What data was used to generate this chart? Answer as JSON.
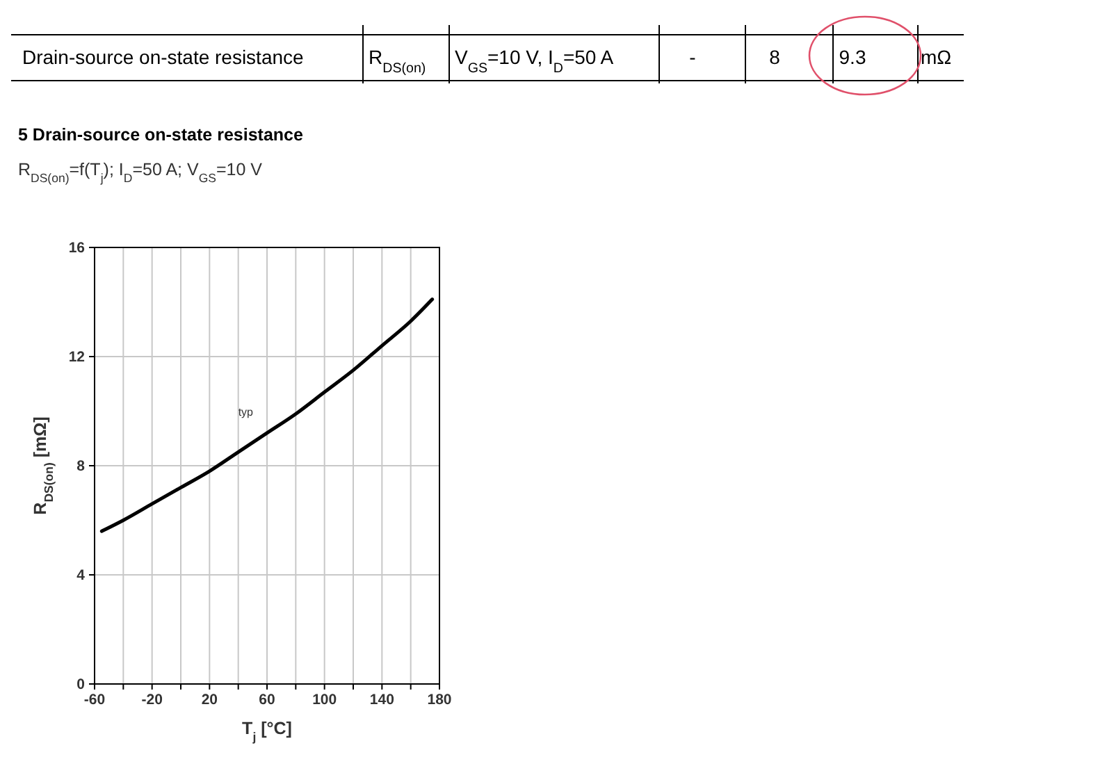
{
  "chart_data": {
    "type": "line",
    "title": "5 Drain-source on-state resistance",
    "subtitle": "R$_{DS(on)}$=f(T$_{j}$); I$_{D}$=50 A; V$_{GS}$=10 V",
    "xlabel": "T$_{j}$ [°C]",
    "ylabel": "R$_{DS(on)}$ [mΩ]",
    "annotations": [
      "Drain-source on-state resistance",
      "R$_{DS(on)}$",
      "V$_{GS}$=10 V, I$_{D}$=50 A",
      "-",
      "8",
      "9.3",
      "mΩ"
    ],
    "xlim": [
      -60,
      180
    ],
    "xticks": [
      -60,
      {
        "value": -40,
        "label": null
      },
      -20,
      {
        "value": 0,
        "label": null
      },
      20,
      {
        "value": 40,
        "label": null
      },
      60,
      {
        "value": 80,
        "label": null
      },
      100,
      {
        "value": 120,
        "label": null
      },
      140,
      {
        "value": 160,
        "label": null
      },
      180
    ],
    "ylim": [
      0,
      16
    ],
    "yticks": [
      0,
      4,
      8,
      12,
      16
    ],
    "grid": true,
    "series": [
      {
        "name": "typ",
        "color": "#000000",
        "x": [
          -55,
          -40,
          -20,
          0,
          20,
          40,
          60,
          80,
          100,
          120,
          140,
          160,
          175
        ],
        "values": [
          5.6,
          6.0,
          6.6,
          7.2,
          7.8,
          8.5,
          9.2,
          9.9,
          10.7,
          11.5,
          12.4,
          13.3,
          14.1
        ]
      }
    ]
  }
}
